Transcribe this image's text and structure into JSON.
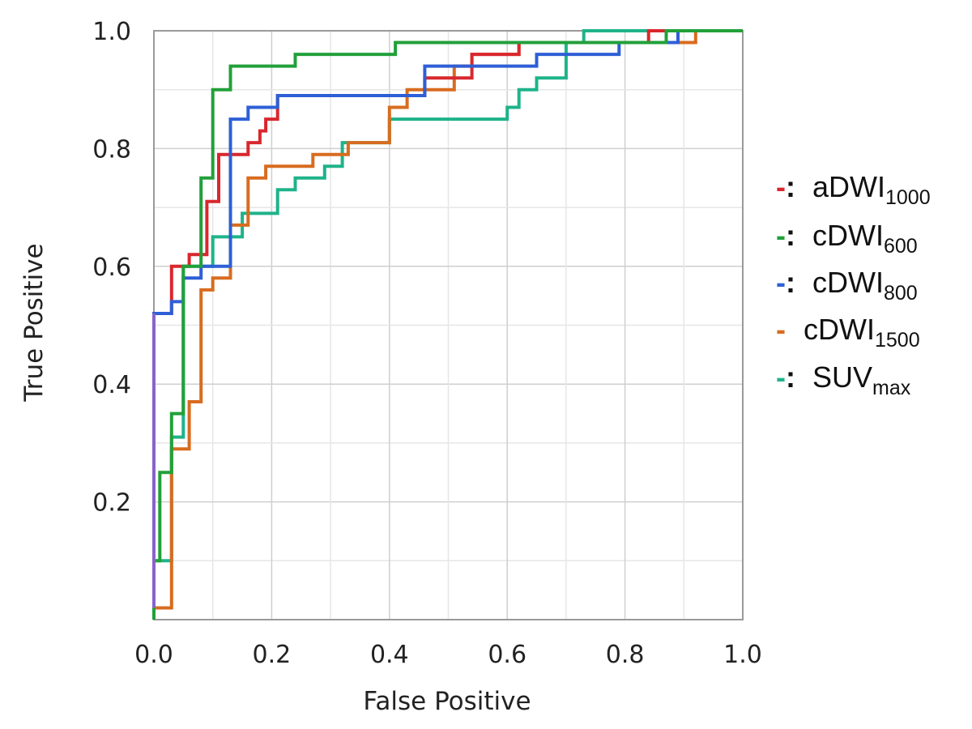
{
  "chart_data": {
    "type": "line",
    "xlabel": "False Positive",
    "ylabel": "True Positive",
    "xlim": [
      0,
      1
    ],
    "ylim": [
      0,
      1
    ],
    "x_ticks": [
      "0.0",
      "0.2",
      "0.4",
      "0.6",
      "0.8",
      "1.0"
    ],
    "y_ticks": [
      "0.2",
      "0.4",
      "0.6",
      "0.8",
      "1.0"
    ],
    "grid": true,
    "legend_position": "right",
    "series": [
      {
        "name": "aDWI",
        "subscript": "1000",
        "legend_marker": "-:",
        "color": "#d9272e",
        "points": [
          [
            0,
            0
          ],
          [
            0,
            0.52
          ],
          [
            0.03,
            0.52
          ],
          [
            0.03,
            0.6
          ],
          [
            0.06,
            0.6
          ],
          [
            0.06,
            0.62
          ],
          [
            0.09,
            0.62
          ],
          [
            0.09,
            0.71
          ],
          [
            0.11,
            0.71
          ],
          [
            0.11,
            0.79
          ],
          [
            0.16,
            0.79
          ],
          [
            0.16,
            0.81
          ],
          [
            0.18,
            0.81
          ],
          [
            0.18,
            0.83
          ],
          [
            0.19,
            0.83
          ],
          [
            0.19,
            0.85
          ],
          [
            0.21,
            0.85
          ],
          [
            0.21,
            0.89
          ],
          [
            0.46,
            0.89
          ],
          [
            0.46,
            0.92
          ],
          [
            0.54,
            0.92
          ],
          [
            0.54,
            0.96
          ],
          [
            0.62,
            0.96
          ],
          [
            0.62,
            0.98
          ],
          [
            0.84,
            0.98
          ],
          [
            0.84,
            1.0
          ],
          [
            1.0,
            1.0
          ]
        ]
      },
      {
        "name": "cDWI",
        "subscript": "600",
        "legend_marker": "-:",
        "color": "#22a03a",
        "points": [
          [
            0,
            0
          ],
          [
            0,
            0.1
          ],
          [
            0.01,
            0.1
          ],
          [
            0.01,
            0.25
          ],
          [
            0.03,
            0.25
          ],
          [
            0.03,
            0.35
          ],
          [
            0.05,
            0.35
          ],
          [
            0.05,
            0.6
          ],
          [
            0.08,
            0.6
          ],
          [
            0.08,
            0.75
          ],
          [
            0.1,
            0.75
          ],
          [
            0.1,
            0.9
          ],
          [
            0.13,
            0.9
          ],
          [
            0.13,
            0.94
          ],
          [
            0.24,
            0.94
          ],
          [
            0.24,
            0.96
          ],
          [
            0.41,
            0.96
          ],
          [
            0.41,
            0.98
          ],
          [
            0.87,
            0.98
          ],
          [
            0.87,
            1.0
          ],
          [
            1.0,
            1.0
          ]
        ]
      },
      {
        "name": "cDWI",
        "subscript": "800",
        "legend_marker": "-:",
        "color": "#2e5fd6",
        "points": [
          [
            0,
            0
          ],
          [
            0,
            0.52
          ],
          [
            0.03,
            0.52
          ],
          [
            0.03,
            0.54
          ],
          [
            0.05,
            0.54
          ],
          [
            0.05,
            0.58
          ],
          [
            0.08,
            0.58
          ],
          [
            0.08,
            0.6
          ],
          [
            0.13,
            0.6
          ],
          [
            0.13,
            0.85
          ],
          [
            0.16,
            0.85
          ],
          [
            0.16,
            0.87
          ],
          [
            0.21,
            0.87
          ],
          [
            0.21,
            0.89
          ],
          [
            0.46,
            0.89
          ],
          [
            0.46,
            0.94
          ],
          [
            0.65,
            0.94
          ],
          [
            0.65,
            0.96
          ],
          [
            0.79,
            0.96
          ],
          [
            0.79,
            0.98
          ],
          [
            0.89,
            0.98
          ],
          [
            0.89,
            1.0
          ],
          [
            1.0,
            1.0
          ]
        ]
      },
      {
        "name": "cDWI",
        "subscript": "1500",
        "legend_marker": "-",
        "color": "#d86c1f",
        "points": [
          [
            0,
            0
          ],
          [
            0,
            0.02
          ],
          [
            0.03,
            0.02
          ],
          [
            0.03,
            0.29
          ],
          [
            0.06,
            0.29
          ],
          [
            0.06,
            0.37
          ],
          [
            0.08,
            0.37
          ],
          [
            0.08,
            0.56
          ],
          [
            0.1,
            0.56
          ],
          [
            0.1,
            0.58
          ],
          [
            0.13,
            0.58
          ],
          [
            0.13,
            0.67
          ],
          [
            0.16,
            0.67
          ],
          [
            0.16,
            0.75
          ],
          [
            0.19,
            0.75
          ],
          [
            0.19,
            0.77
          ],
          [
            0.27,
            0.77
          ],
          [
            0.27,
            0.79
          ],
          [
            0.33,
            0.79
          ],
          [
            0.33,
            0.81
          ],
          [
            0.4,
            0.81
          ],
          [
            0.4,
            0.87
          ],
          [
            0.43,
            0.87
          ],
          [
            0.43,
            0.9
          ],
          [
            0.51,
            0.9
          ],
          [
            0.51,
            0.94
          ],
          [
            0.54,
            0.94
          ],
          [
            0.54,
            0.96
          ],
          [
            0.62,
            0.96
          ],
          [
            0.62,
            0.98
          ],
          [
            0.92,
            0.98
          ],
          [
            0.92,
            1.0
          ],
          [
            1.0,
            1.0
          ]
        ]
      },
      {
        "name": "SUV",
        "subscript": "max",
        "legend_marker": "-:",
        "color": "#1fb38a",
        "points": [
          [
            0,
            0
          ],
          [
            0,
            0.1
          ],
          [
            0.03,
            0.1
          ],
          [
            0.03,
            0.31
          ],
          [
            0.05,
            0.31
          ],
          [
            0.05,
            0.6
          ],
          [
            0.1,
            0.6
          ],
          [
            0.1,
            0.65
          ],
          [
            0.15,
            0.65
          ],
          [
            0.15,
            0.69
          ],
          [
            0.21,
            0.69
          ],
          [
            0.21,
            0.73
          ],
          [
            0.24,
            0.73
          ],
          [
            0.24,
            0.75
          ],
          [
            0.29,
            0.75
          ],
          [
            0.29,
            0.77
          ],
          [
            0.32,
            0.77
          ],
          [
            0.32,
            0.81
          ],
          [
            0.4,
            0.81
          ],
          [
            0.4,
            0.85
          ],
          [
            0.6,
            0.85
          ],
          [
            0.6,
            0.87
          ],
          [
            0.62,
            0.87
          ],
          [
            0.62,
            0.9
          ],
          [
            0.65,
            0.9
          ],
          [
            0.65,
            0.92
          ],
          [
            0.7,
            0.92
          ],
          [
            0.7,
            0.98
          ],
          [
            0.73,
            0.98
          ],
          [
            0.73,
            1.0
          ],
          [
            1.0,
            1.0
          ]
        ]
      }
    ],
    "diagonal_segment": {
      "color": "#8a63c9",
      "points": [
        [
          0,
          0.02
        ],
        [
          0,
          0.52
        ]
      ]
    }
  }
}
